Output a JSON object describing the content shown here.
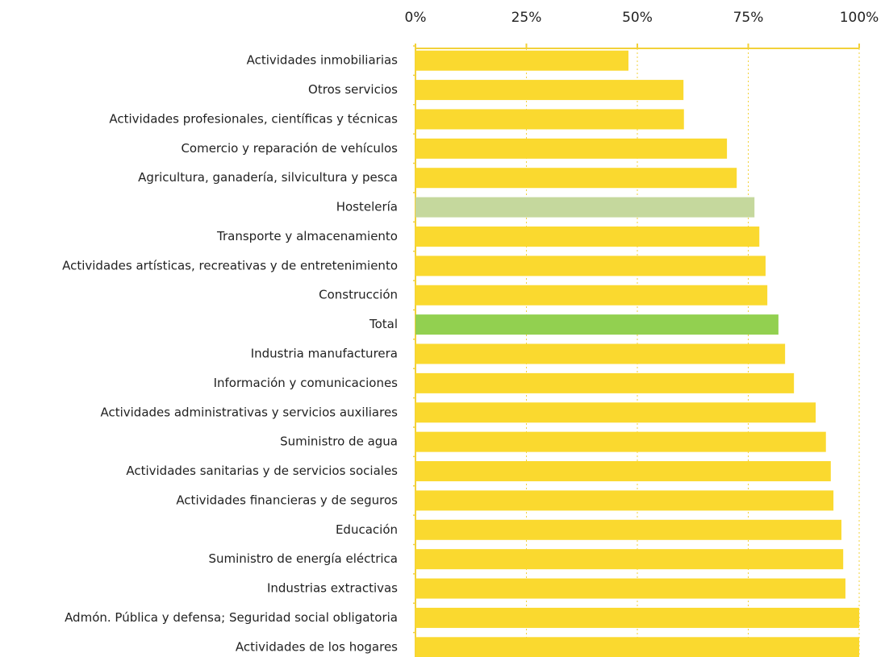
{
  "chart_data": {
    "type": "bar",
    "orientation": "horizontal",
    "categories": [
      "Actividades inmobiliarias",
      "Otros servicios",
      "Actividades profesionales, científicas y técnicas",
      "Comercio y reparación de vehículos",
      "Agricultura, ganadería, silvicultura y pesca",
      "Hostelería",
      "Transporte y almacenamiento",
      "Actividades artísticas, recreativas y de entretenimiento",
      "Construcción",
      "Total",
      "Industria manufacturera",
      "Información y comunicaciones",
      "Actividades administrativas y servicios auxiliares",
      "Suministro de agua",
      "Actividades sanitarias y de servicios sociales",
      "Actividades financieras y de seguros",
      "Educación",
      "Suministro de energía eléctrica",
      "Industrias extractivas",
      "Admón. Pública y defensa; Seguridad social obligatoria",
      "Actividades de los hogares"
    ],
    "values": [
      48,
      60.4,
      60.5,
      70.2,
      72.4,
      76.4,
      77.5,
      78.9,
      79.3,
      81.8,
      83.3,
      85.3,
      90.2,
      92.5,
      93.6,
      94.2,
      96,
      96.4,
      96.9,
      100,
      100
    ],
    "colors": [
      "#fad92f",
      "#fad92f",
      "#fad92f",
      "#fad92f",
      "#fad92f",
      "#c5d89d",
      "#fad92f",
      "#fad92f",
      "#fad92f",
      "#92d050",
      "#fad92f",
      "#fad92f",
      "#fad92f",
      "#fad92f",
      "#fad92f",
      "#fad92f",
      "#fad92f",
      "#fad92f",
      "#fad92f",
      "#fad92f",
      "#fad92f"
    ],
    "xlim": [
      0,
      100
    ],
    "xticks": [
      {
        "value": 0,
        "label": "0%"
      },
      {
        "value": 25,
        "label": "25%"
      },
      {
        "value": 50,
        "label": "50%"
      },
      {
        "value": 75,
        "label": "75%"
      },
      {
        "value": 100,
        "label": "100%"
      }
    ],
    "grid": true
  }
}
